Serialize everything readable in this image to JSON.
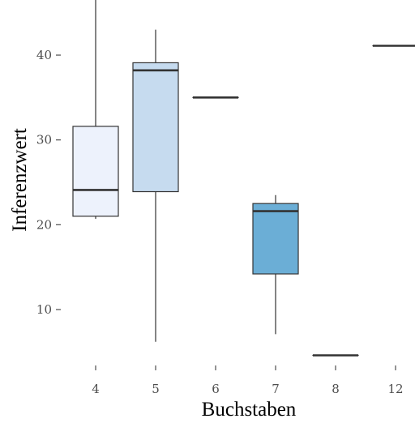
{
  "chart_data": {
    "type": "boxplot",
    "xlabel": "Buchstaben",
    "ylabel": "Inferenzwert",
    "categories": [
      "4",
      "5",
      "6",
      "7",
      "8",
      "12"
    ],
    "ylim": [
      3.5,
      46.5
    ],
    "yticks": [
      10,
      20,
      30,
      40
    ],
    "grid": false,
    "legend": "none",
    "boxes": [
      {
        "category": "4",
        "whisker_low": 20.7,
        "q1": 21.0,
        "median": 24.1,
        "q3": 31.6,
        "whisker_high": 46.5,
        "fill": "#edf2fc"
      },
      {
        "category": "5",
        "whisker_low": 6.2,
        "q1": 23.9,
        "median": 38.2,
        "q3": 39.1,
        "whisker_high": 43.0,
        "fill": "#c6dbef"
      },
      {
        "category": "6",
        "whisker_low": 35.0,
        "q1": 35.0,
        "median": 35.0,
        "q3": 35.0,
        "whisker_high": 35.0,
        "fill": "#9ecae1"
      },
      {
        "category": "7",
        "whisker_low": 7.1,
        "q1": 14.2,
        "median": 21.6,
        "q3": 22.5,
        "whisker_high": 23.5,
        "fill": "#6baed6"
      },
      {
        "category": "8",
        "whisker_low": 4.6,
        "q1": 4.6,
        "median": 4.6,
        "q3": 4.6,
        "whisker_high": 4.6,
        "fill": "#4292c6"
      },
      {
        "category": "12",
        "whisker_low": 41.1,
        "q1": 41.1,
        "median": 41.1,
        "q3": 41.1,
        "whisker_high": 41.1,
        "fill": "#2171b5"
      }
    ]
  }
}
